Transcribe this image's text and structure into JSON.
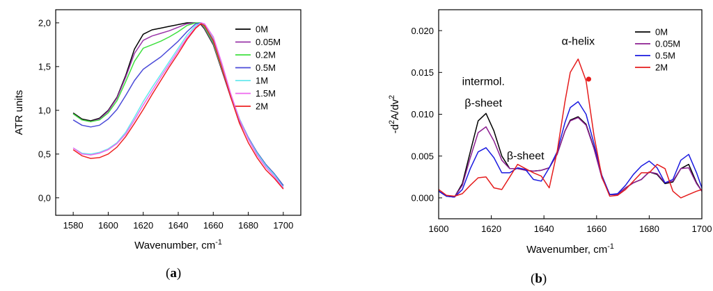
{
  "panels": [
    {
      "label_open": "(",
      "label_letter": "a",
      "label_close": ")"
    },
    {
      "label_open": "(",
      "label_letter": "b",
      "label_close": ")"
    }
  ],
  "chart_data": [
    {
      "type": "line",
      "xlabel": "Wavenumber, cm",
      "xlabel_sup": "-1",
      "ylabel": "ATR units",
      "xlim": [
        1570,
        1710
      ],
      "ylim": [
        -0.2,
        2.15
      ],
      "xticks": [
        "1580",
        "1600",
        "1620",
        "1640",
        "1660",
        "1680",
        "1700"
      ],
      "xtick_values": [
        1580,
        1600,
        1620,
        1640,
        1660,
        1680,
        1700
      ],
      "yticks": [
        "0,0",
        "0,5",
        "1,0",
        "1,5",
        "2,0"
      ],
      "ytick_values": [
        0.0,
        0.5,
        1.0,
        1.5,
        2.0
      ],
      "grid": false,
      "legend_position": "top-right",
      "x": [
        1580,
        1585,
        1590,
        1595,
        1600,
        1605,
        1610,
        1615,
        1620,
        1625,
        1630,
        1635,
        1640,
        1645,
        1650,
        1653,
        1655,
        1660,
        1665,
        1670,
        1675,
        1680,
        1685,
        1690,
        1695,
        1700
      ],
      "series": [
        {
          "name": "0M",
          "color": "#000000",
          "values": [
            0.97,
            0.9,
            0.88,
            0.91,
            1.0,
            1.15,
            1.4,
            1.7,
            1.87,
            1.92,
            1.94,
            1.96,
            1.98,
            2.0,
            2.0,
            1.98,
            1.93,
            1.75,
            1.45,
            1.15,
            0.88,
            0.68,
            0.52,
            0.38,
            0.27,
            0.14
          ]
        },
        {
          "name": "0.05M",
          "color": "#9a35a8",
          "values": [
            0.96,
            0.89,
            0.87,
            0.9,
            0.99,
            1.14,
            1.38,
            1.65,
            1.8,
            1.85,
            1.88,
            1.91,
            1.95,
            1.99,
            2.0,
            1.99,
            1.94,
            1.76,
            1.46,
            1.15,
            0.88,
            0.68,
            0.52,
            0.38,
            0.27,
            0.14
          ]
        },
        {
          "name": "0.2M",
          "color": "#3fe03f",
          "values": [
            0.96,
            0.89,
            0.87,
            0.89,
            0.97,
            1.11,
            1.33,
            1.56,
            1.71,
            1.75,
            1.79,
            1.84,
            1.9,
            1.97,
            2.0,
            2.0,
            1.95,
            1.77,
            1.47,
            1.16,
            0.89,
            0.68,
            0.52,
            0.38,
            0.27,
            0.14
          ]
        },
        {
          "name": "0.5M",
          "color": "#4a4ad8",
          "values": [
            0.89,
            0.83,
            0.81,
            0.83,
            0.9,
            1.01,
            1.17,
            1.34,
            1.47,
            1.54,
            1.61,
            1.7,
            1.79,
            1.9,
            1.99,
            2.0,
            1.97,
            1.79,
            1.49,
            1.17,
            0.9,
            0.69,
            0.52,
            0.38,
            0.27,
            0.14
          ]
        },
        {
          "name": "1M",
          "color": "#66e8ee",
          "values": [
            0.57,
            0.51,
            0.5,
            0.52,
            0.56,
            0.63,
            0.75,
            0.92,
            1.1,
            1.26,
            1.41,
            1.56,
            1.71,
            1.86,
            1.97,
            2.0,
            1.98,
            1.82,
            1.51,
            1.18,
            0.9,
            0.68,
            0.51,
            0.37,
            0.26,
            0.12
          ]
        },
        {
          "name": "1.5M",
          "color": "#ee66ee",
          "values": [
            0.57,
            0.5,
            0.49,
            0.51,
            0.55,
            0.62,
            0.73,
            0.89,
            1.06,
            1.22,
            1.38,
            1.53,
            1.68,
            1.83,
            1.95,
            2.0,
            1.99,
            1.84,
            1.53,
            1.19,
            0.89,
            0.67,
            0.49,
            0.35,
            0.24,
            0.11
          ]
        },
        {
          "name": "2M",
          "color": "#ee2222",
          "values": [
            0.55,
            0.48,
            0.45,
            0.46,
            0.5,
            0.58,
            0.7,
            0.85,
            1.01,
            1.18,
            1.34,
            1.5,
            1.65,
            1.81,
            1.94,
            1.99,
            1.97,
            1.8,
            1.48,
            1.15,
            0.85,
            0.63,
            0.46,
            0.32,
            0.22,
            0.1
          ]
        }
      ]
    },
    {
      "type": "line",
      "xlabel": "Wavenumber, cm",
      "xlabel_sup": "-1",
      "ylabel_parts": [
        "-d",
        "2",
        "A/dv",
        "2"
      ],
      "xlim": [
        1600,
        1700
      ],
      "ylim": [
        -0.0025,
        0.0225
      ],
      "xticks": [
        "1600",
        "1620",
        "1640",
        "1660",
        "1680",
        "1700"
      ],
      "xtick_values": [
        1600,
        1620,
        1640,
        1660,
        1680,
        1700
      ],
      "yticks": [
        "0.000",
        "0.005",
        "0.010",
        "0.015",
        "0.020"
      ],
      "ytick_values": [
        0.0,
        0.005,
        0.01,
        0.015,
        0.02
      ],
      "grid": false,
      "legend_position": "top-right",
      "annotations": [
        {
          "text": "α-helix",
          "x": 1653,
          "y": 0.0183
        },
        {
          "text": "intermol.",
          "x": 1617,
          "y": 0.0135
        },
        {
          "text": "β-sheet",
          "x": 1617,
          "y": 0.0109
        },
        {
          "text": "β-sheet",
          "x": 1633,
          "y": 0.0046
        }
      ],
      "marker": {
        "x": 1657,
        "y": 0.0142,
        "color": "#e51c1c"
      },
      "x": [
        1600,
        1603,
        1606,
        1609,
        1612,
        1615,
        1618,
        1621,
        1624,
        1627,
        1630,
        1633,
        1636,
        1639,
        1642,
        1645,
        1648,
        1650,
        1653,
        1656,
        1659,
        1662,
        1665,
        1668,
        1671,
        1674,
        1677,
        1680,
        1683,
        1686,
        1689,
        1692,
        1695,
        1698,
        1700
      ],
      "series": [
        {
          "name": "0M",
          "color": "#000000",
          "values": [
            0.0008,
            0.0002,
            0.0001,
            0.0017,
            0.0055,
            0.0092,
            0.0101,
            0.008,
            0.005,
            0.0035,
            0.0035,
            0.0033,
            0.0032,
            0.0033,
            0.0036,
            0.0052,
            0.008,
            0.0093,
            0.0097,
            0.0088,
            0.006,
            0.0025,
            0.0004,
            0.0004,
            0.0012,
            0.0018,
            0.0022,
            0.0031,
            0.0028,
            0.0017,
            0.0019,
            0.0035,
            0.004,
            0.0018,
            0.0008
          ]
        },
        {
          "name": "0.05M",
          "color": "#8b1e90",
          "values": [
            0.0008,
            0.0002,
            0.0001,
            0.0015,
            0.0048,
            0.0078,
            0.0085,
            0.0068,
            0.0045,
            0.0035,
            0.0035,
            0.0033,
            0.0032,
            0.0033,
            0.0036,
            0.0052,
            0.008,
            0.0092,
            0.0096,
            0.0087,
            0.0059,
            0.0024,
            0.0004,
            0.0004,
            0.0012,
            0.0018,
            0.0022,
            0.0031,
            0.0029,
            0.0018,
            0.002,
            0.0035,
            0.0036,
            0.0017,
            0.0008
          ]
        },
        {
          "name": "0.5M",
          "color": "#1a1ae0",
          "values": [
            0.0008,
            0.0002,
            0.0001,
            0.001,
            0.0035,
            0.0055,
            0.006,
            0.0048,
            0.003,
            0.003,
            0.0036,
            0.0034,
            0.0022,
            0.002,
            0.0036,
            0.0055,
            0.009,
            0.0108,
            0.0115,
            0.01,
            0.0065,
            0.0027,
            0.0004,
            0.0005,
            0.0015,
            0.0028,
            0.0038,
            0.0044,
            0.0036,
            0.0018,
            0.0022,
            0.0045,
            0.0052,
            0.003,
            0.0012
          ]
        },
        {
          "name": "2M",
          "color": "#e51c1c",
          "values": [
            0.001,
            0.0003,
            0.0002,
            0.0005,
            0.0015,
            0.0024,
            0.0025,
            0.0012,
            0.001,
            0.0025,
            0.004,
            0.0035,
            0.003,
            0.0026,
            0.0012,
            0.0055,
            0.0115,
            0.015,
            0.0166,
            0.014,
            0.0075,
            0.0025,
            0.0002,
            0.0003,
            0.001,
            0.002,
            0.003,
            0.003,
            0.004,
            0.0035,
            0.0008,
            0.0,
            0.0004,
            0.0008,
            0.001
          ]
        }
      ]
    }
  ]
}
